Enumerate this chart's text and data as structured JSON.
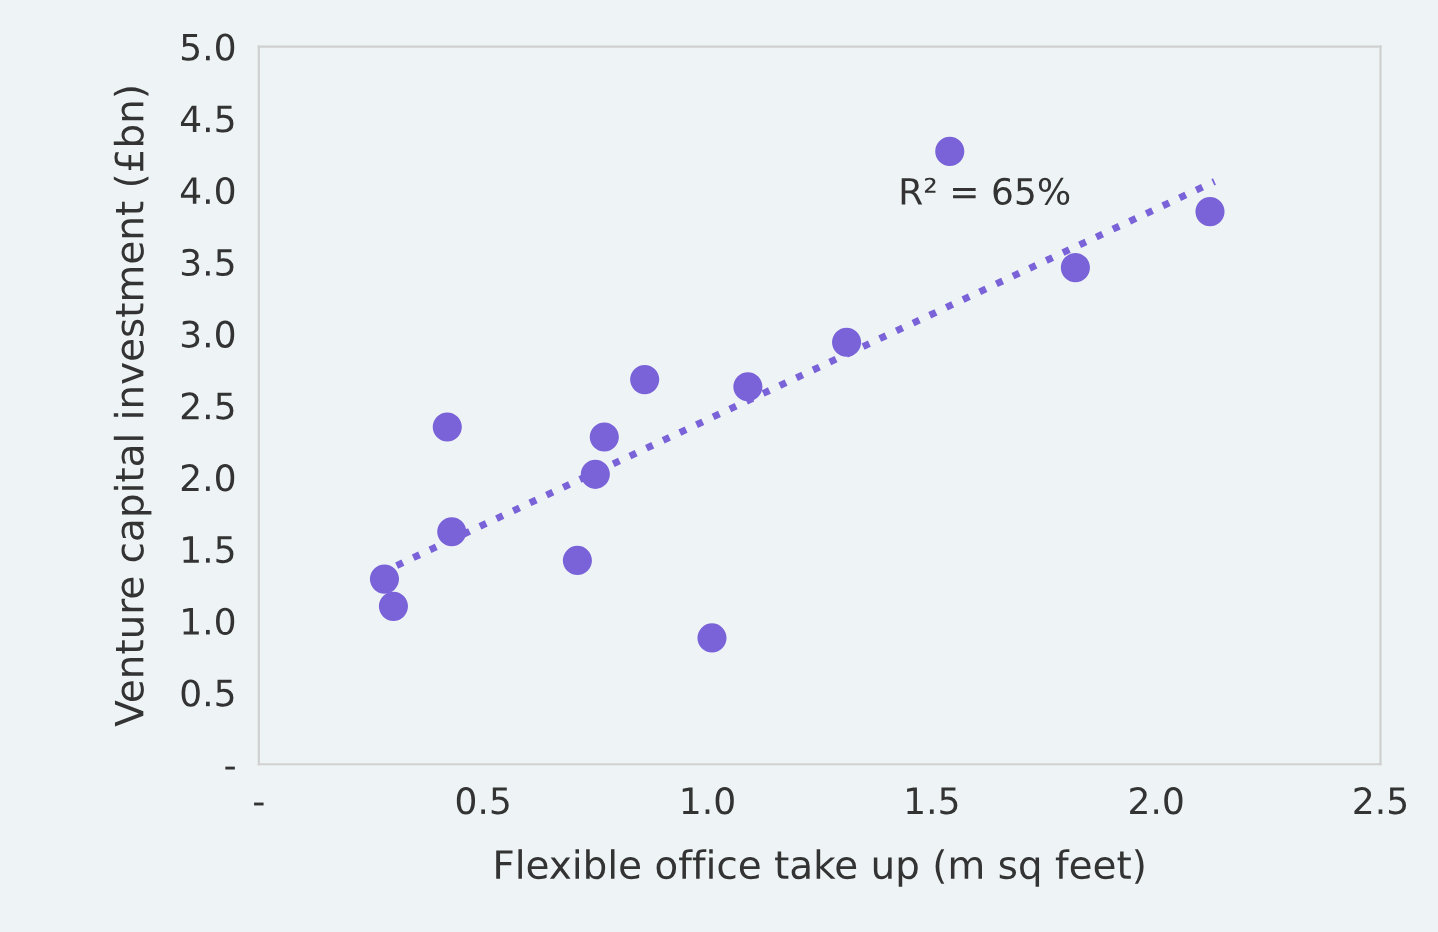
{
  "chart_data": {
    "type": "scatter",
    "xlabel": "Flexible office take up (m sq feet)",
    "ylabel": "Venture capital investment (£bn)",
    "annotations": [
      "R² = 65%"
    ],
    "series": [
      {
        "type": "scatter",
        "color": "#7a63d8",
        "marker": "circle",
        "x": [
          0.28,
          0.3,
          0.42,
          0.43,
          0.71,
          0.75,
          0.77,
          0.86,
          1.01,
          1.09,
          1.31,
          1.54,
          1.82,
          2.12
        ],
        "values": [
          1.29,
          1.1,
          2.35,
          1.62,
          1.42,
          2.02,
          2.28,
          2.68,
          0.88,
          2.63,
          2.94,
          4.27,
          3.46,
          3.85
        ]
      },
      {
        "type": "line",
        "color": "#7a63d8",
        "line_style": "dotted",
        "x": [
          0.27,
          2.13
        ],
        "values": [
          1.33,
          4.06
        ]
      }
    ],
    "xlim": [
      0,
      2.5
    ],
    "xticks": [
      {
        "value": 0,
        "label": "-"
      },
      0.5,
      {
        "value": 1,
        "label": "1.0"
      },
      1.5,
      {
        "value": 2,
        "label": "2.0"
      },
      2.5
    ],
    "ylim": [
      0,
      5
    ],
    "yticks": [
      {
        "value": 0,
        "label": "-"
      },
      0.5,
      {
        "value": 1,
        "label": "1.0"
      },
      1.5,
      {
        "value": 2,
        "label": "2.0"
      },
      2.5,
      {
        "value": 3,
        "label": "3.0"
      },
      3.5,
      {
        "value": 4,
        "label": "4.0"
      },
      4.5,
      {
        "value": 5,
        "label": "5.0"
      }
    ],
    "grid": false,
    "legend": false
  }
}
